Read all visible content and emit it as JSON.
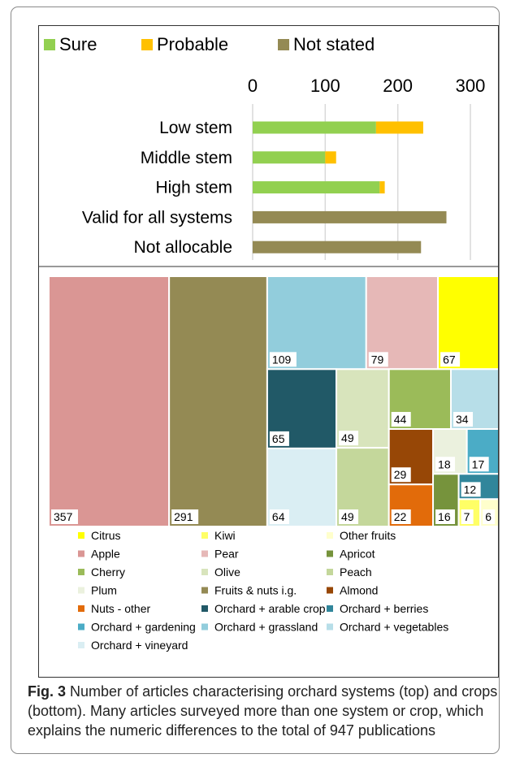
{
  "chart_data": [
    {
      "type": "bar",
      "orientation": "horizontal",
      "stacked": true,
      "categories": [
        "Low stem",
        "Middle stem",
        "High stem",
        "Valid for all systems",
        "Not allocable"
      ],
      "series": [
        {
          "name": "Sure",
          "color": "#92D050",
          "values": [
            170,
            100,
            175,
            0,
            0
          ]
        },
        {
          "name": "Probable",
          "color": "#FFC000",
          "values": [
            65,
            15,
            7,
            0,
            0
          ]
        },
        {
          "name": "Not stated",
          "color": "#948A54",
          "values": [
            0,
            0,
            0,
            267,
            232
          ]
        }
      ],
      "xlim": [
        0,
        300
      ],
      "xticks": [
        "0",
        "100",
        "200",
        "300"
      ],
      "x_axis_position": "top",
      "grid": true,
      "legend": "top"
    },
    {
      "type": "treemap",
      "items": [
        {
          "name": "Apple",
          "value": 357,
          "color": "#DA9694"
        },
        {
          "name": "Fruits & nuts i.g.",
          "value": 291,
          "color": "#948A54"
        },
        {
          "name": "Orchard + grassland",
          "value": 109,
          "color": "#92CDDC"
        },
        {
          "name": "Pear",
          "value": 79,
          "color": "#E6B8B7"
        },
        {
          "name": "Citrus",
          "value": 67,
          "color": "#FFFF00"
        },
        {
          "name": "Orchard + arable crop",
          "value": 65,
          "color": "#215967"
        },
        {
          "name": "Orchard + vineyard",
          "value": 64,
          "color": "#DAEEF3"
        },
        {
          "name": "Olive",
          "value": 49,
          "color": "#D8E4BC"
        },
        {
          "name": "Peach",
          "value": 49,
          "color": "#C4D79B"
        },
        {
          "name": "Cherry",
          "value": 44,
          "color": "#9BBB59"
        },
        {
          "name": "Orchard + vegetables",
          "value": 34,
          "color": "#B7DEE8"
        },
        {
          "name": "Almond",
          "value": 29,
          "color": "#974706"
        },
        {
          "name": "Nuts - other",
          "value": 22,
          "color": "#E26B0A"
        },
        {
          "name": "Plum",
          "value": 18,
          "color": "#EBF1DE"
        },
        {
          "name": "Orchard + gardening",
          "value": 17,
          "color": "#4BACC6"
        },
        {
          "name": "Apricot",
          "value": 16,
          "color": "#76933C"
        },
        {
          "name": "Orchard + berries",
          "value": 12,
          "color": "#31869B"
        },
        {
          "name": "Kiwi",
          "value": 7,
          "color": "#FFFF66"
        },
        {
          "name": "Other fruits",
          "value": 6,
          "color": "#FFFFCC"
        }
      ],
      "legend_order": [
        "Citrus",
        "Kiwi",
        "Other fruits",
        "Apple",
        "Pear",
        "Apricot",
        "Cherry",
        "Olive",
        "Peach",
        "Plum",
        "Fruits & nuts i.g.",
        "Almond",
        "Nuts - other",
        "Orchard + arable crop",
        "Orchard + berries",
        "Orchard + gardening",
        "Orchard + grassland",
        "Orchard + vegetables",
        "Orchard + vineyard"
      ]
    }
  ],
  "caption": {
    "label": "Fig. 3",
    "text": "Number of articles characterising orchard systems (top) and crops (bottom). Many articles surveyed more than one system or crop, which explains the numeric differences to the total of 947 publications"
  }
}
